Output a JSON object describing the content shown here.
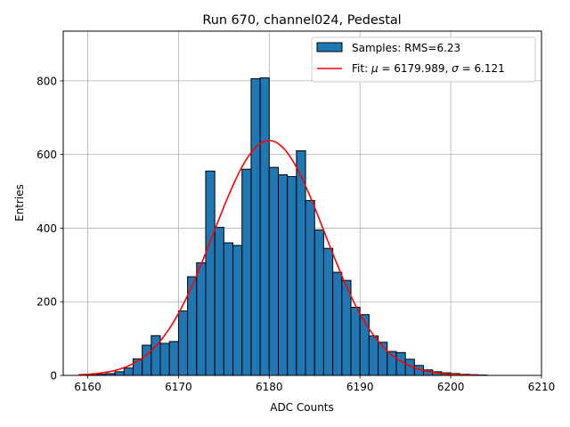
{
  "chart_data": {
    "type": "bar",
    "title": "Run 670, channel024, Pedestal",
    "xlabel": "ADC Counts",
    "ylabel": "Entries",
    "xlim": [
      6157.3,
      6210
    ],
    "ylim": [
      0,
      935
    ],
    "grid": true,
    "legend_position": "top-right",
    "xticks": [
      6160,
      6170,
      6180,
      6190,
      6200,
      6210
    ],
    "yticks": [
      0,
      200,
      400,
      600,
      800
    ],
    "bin_width": 1,
    "bin_edges_start": 6160,
    "values": [
      1,
      3,
      5,
      10,
      20,
      45,
      82,
      108,
      87,
      92,
      175,
      268,
      306,
      555,
      402,
      360,
      353,
      560,
      806,
      808,
      565,
      545,
      540,
      610,
      475,
      395,
      345,
      280,
      258,
      185,
      165,
      107,
      90,
      65,
      62,
      44,
      27,
      15,
      10,
      7,
      5,
      3,
      2,
      1
    ],
    "series": [
      {
        "name": "Samples: RMS=6.23",
        "kind": "histogram",
        "color": "#1f77b4",
        "edgecolor": "#000000"
      },
      {
        "name_prefix": "Fit: ",
        "mu_symbol": "μ",
        "mu_text": " = 6179.989, ",
        "sigma_symbol": "σ",
        "sigma_text": " = 6.121",
        "kind": "line",
        "color": "#ff0000",
        "mu": 6179.989,
        "sigma": 6.121,
        "amplitude": 638,
        "x_range": [
          6159,
          6203
        ]
      }
    ]
  }
}
